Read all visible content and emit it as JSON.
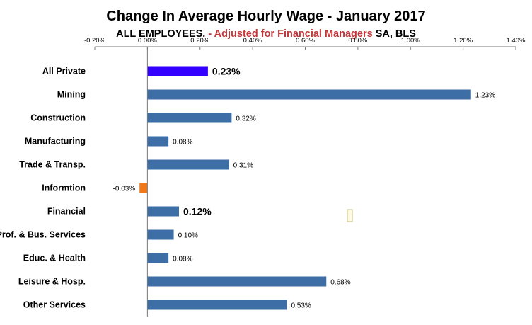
{
  "chart_data": {
    "type": "bar",
    "orientation": "horizontal",
    "title": "Change In Average Hourly Wage - January 2017",
    "subtitle_parts": {
      "part1": "ALL EMPLOYEES.",
      "part2": "- Adjusted for Financial Managers",
      "part3": "SA,  BLS"
    },
    "categories": [
      "All Private",
      "Mining",
      "Construction",
      "Manufacturing",
      "Trade & Transp.",
      "Informtion",
      "Financial",
      "Prof. & Bus. Services",
      "Educ. & Health",
      "Leisure &  Hosp.",
      "Other Services"
    ],
    "values": [
      0.23,
      1.23,
      0.32,
      0.08,
      0.31,
      -0.03,
      0.12,
      0.1,
      0.08,
      0.68,
      0.53
    ],
    "data_labels": [
      "0.23%",
      "1.23%",
      "0.32%",
      "0.08%",
      "0.31%",
      "-0.03%",
      "0.12%",
      "0.10%",
      "0.08%",
      "0.68%",
      "0.53%"
    ],
    "xlim": [
      -0.2,
      1.4
    ],
    "x_ticks": [
      -0.2,
      0,
      0.2,
      0.4,
      0.6,
      0.8,
      1.0,
      1.2,
      1.4
    ],
    "x_tick_labels": [
      "-0.20%",
      "0.00%",
      "0.20%",
      "0.40%",
      "0.60%",
      "0.80%",
      "1.00%",
      "1.20%",
      "1.40%"
    ],
    "x_axis_position": "top",
    "grid": false,
    "colors": {
      "default": "#3e6ea6",
      "highlight_total": "#3300ff",
      "negative": "#f07819",
      "financial_label": "#4a7fcf",
      "subtitle_accent": "#c0393b"
    },
    "highlight": {
      "All Private": "total",
      "Financial": "label"
    }
  }
}
